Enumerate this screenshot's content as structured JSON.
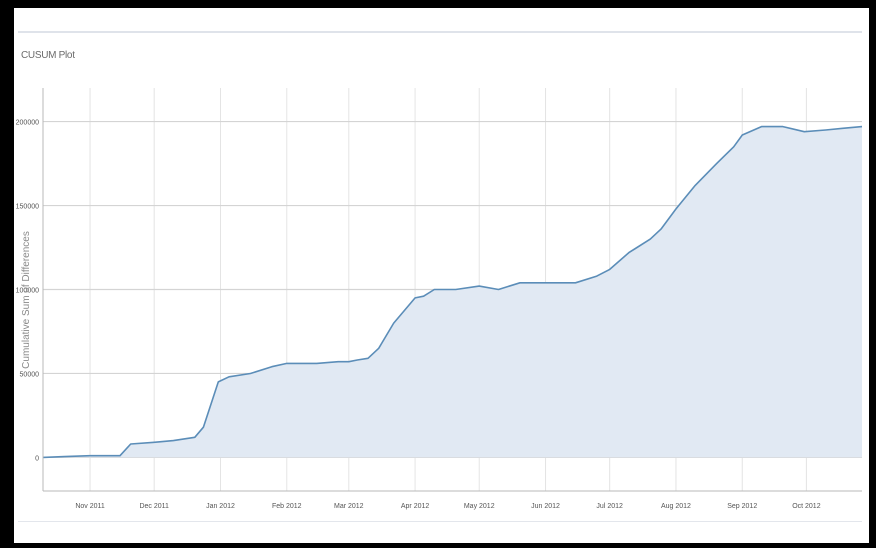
{
  "colors": {
    "line": "#5b8db8",
    "area": "#e1e9f3",
    "grid_h": "#d4d4d4",
    "grid_v": "#e4e4e4",
    "axis": "#b8b8b8",
    "tick_text": "#555555"
  },
  "chart_data": {
    "type": "area",
    "title": "CUSUM Plot",
    "xlabel": "",
    "ylabel": "Cumulative Sum of Differences",
    "xlim": [
      "2011-10-10",
      "2012-10-27"
    ],
    "ylim": [
      -20000,
      220000
    ],
    "yticks": [
      0,
      50000,
      100000,
      150000,
      200000
    ],
    "ytick_labels": [
      "0",
      "50000",
      "100000",
      "150000",
      "200000"
    ],
    "xticks": [
      "2011-11-01",
      "2011-12-01",
      "2012-01-01",
      "2012-02-01",
      "2012-03-01",
      "2012-04-01",
      "2012-05-01",
      "2012-06-01",
      "2012-07-01",
      "2012-08-01",
      "2012-09-01",
      "2012-10-01"
    ],
    "xtick_labels": [
      "Nov 2011",
      "Dec 2011",
      "Jan 2012",
      "Feb 2012",
      "Mar 2012",
      "Apr 2012",
      "May 2012",
      "Jun 2012",
      "Jul 2012",
      "Aug 2012",
      "Sep 2012",
      "Oct 2012"
    ],
    "grid": true,
    "series": [
      {
        "x": [
          "2011-10-10",
          "2011-10-20",
          "2011-11-01",
          "2011-11-15",
          "2011-11-20",
          "2011-12-01",
          "2011-12-10",
          "2011-12-20",
          "2011-12-24",
          "2011-12-31",
          "2012-01-05",
          "2012-01-15",
          "2012-01-25",
          "2012-02-01",
          "2012-02-15",
          "2012-02-25",
          "2012-03-01",
          "2012-03-05",
          "2012-03-10",
          "2012-03-15",
          "2012-03-22",
          "2012-04-01",
          "2012-04-05",
          "2012-04-10",
          "2012-04-20",
          "2012-05-01",
          "2012-05-10",
          "2012-05-20",
          "2012-06-01",
          "2012-06-15",
          "2012-06-25",
          "2012-07-01",
          "2012-07-10",
          "2012-07-20",
          "2012-07-25",
          "2012-08-01",
          "2012-08-10",
          "2012-08-20",
          "2012-08-28",
          "2012-09-01",
          "2012-09-10",
          "2012-09-15",
          "2012-09-20",
          "2012-09-30",
          "2012-10-10",
          "2012-10-18",
          "2012-10-27"
        ],
        "y": [
          0,
          500,
          1000,
          1000,
          8000,
          9000,
          10000,
          12000,
          18000,
          45000,
          48000,
          50000,
          54000,
          56000,
          56000,
          57000,
          57000,
          58000,
          59000,
          65000,
          80000,
          95000,
          96000,
          100000,
          100000,
          102000,
          100000,
          104000,
          104000,
          104000,
          108000,
          112000,
          122000,
          130000,
          136000,
          148000,
          162000,
          175000,
          185000,
          192000,
          197000,
          197000,
          197000,
          194000,
          195000,
          196000,
          197000
        ]
      }
    ]
  }
}
